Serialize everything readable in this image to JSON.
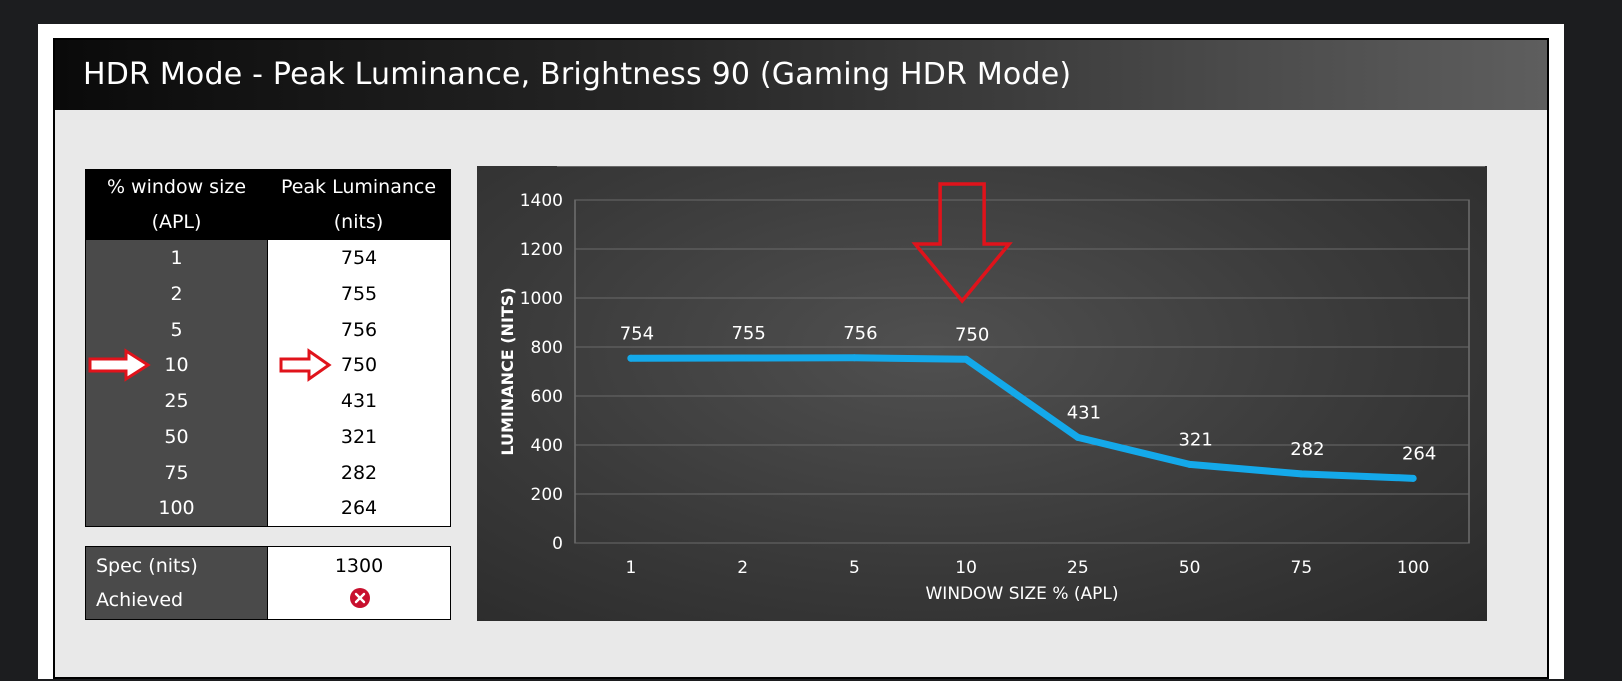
{
  "header": {
    "title": "HDR Mode - Peak Luminance, Brightness 90 (Gaming HDR Mode)"
  },
  "table": {
    "col1_header_line1": "% window size",
    "col1_header_line2": "(APL)",
    "col2_header_line1": "Peak Luminance",
    "col2_header_line2": "(nits)",
    "rows": [
      {
        "apl": "1",
        "nits": "754"
      },
      {
        "apl": "2",
        "nits": "755"
      },
      {
        "apl": "5",
        "nits": "756"
      },
      {
        "apl": "10",
        "nits": "750"
      },
      {
        "apl": "25",
        "nits": "431"
      },
      {
        "apl": "50",
        "nits": "321"
      },
      {
        "apl": "75",
        "nits": "282"
      },
      {
        "apl": "100",
        "nits": "264"
      }
    ],
    "highlight_row": 3
  },
  "spec": {
    "spec_label": "Spec (nits)",
    "spec_value": "1300",
    "achieved_label": "Achieved",
    "achieved_icon": "red-x-circle-icon"
  },
  "colors": {
    "line": "#14a9ea",
    "arrow": "#e0131b",
    "achieved_fail": "#c8102e"
  },
  "chart_data": {
    "type": "line",
    "categories": [
      "1",
      "2",
      "5",
      "10",
      "25",
      "50",
      "75",
      "100"
    ],
    "values": [
      754,
      755,
      756,
      750,
      431,
      321,
      282,
      264
    ],
    "data_labels": [
      "754",
      "755",
      "756",
      "750",
      "431",
      "321",
      "282",
      "264"
    ],
    "xlabel": "WINDOW SIZE % (APL)",
    "ylabel": "LUMINANCE (NITS)",
    "ylim": [
      0,
      1400
    ],
    "yticks": [
      0,
      200,
      400,
      600,
      800,
      1000,
      1200,
      1400
    ],
    "grid": true,
    "highlight_category": "10"
  }
}
